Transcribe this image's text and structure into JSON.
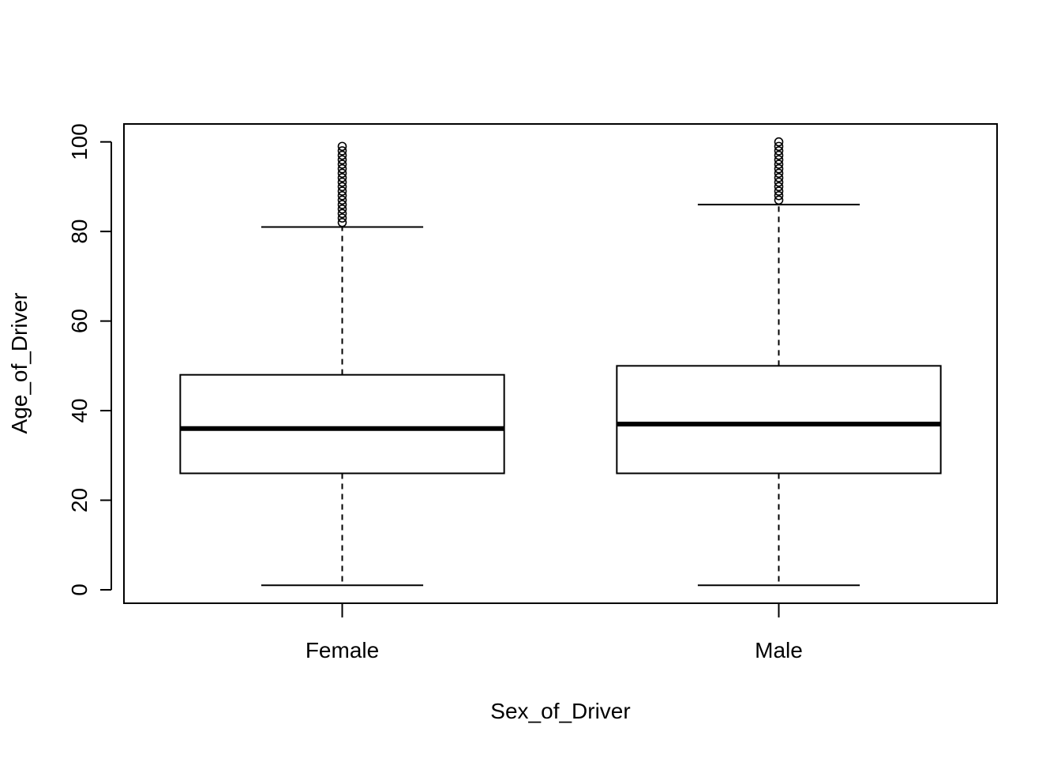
{
  "chart_data": {
    "type": "boxplot",
    "title": "",
    "xlabel": "Sex_of_Driver",
    "ylabel": "Age_of_Driver",
    "ylim": [
      -3,
      104
    ],
    "yticks": [
      0,
      20,
      40,
      60,
      80,
      100
    ],
    "yticklabels": [
      "0",
      "20",
      "40",
      "60",
      "80",
      "100"
    ],
    "grid": false,
    "legend": "none",
    "colors": {
      "box_fill": "#ffffff",
      "stroke": "#000000"
    },
    "categories": [
      "Female",
      "Male"
    ],
    "boxes": [
      {
        "category": "Female",
        "whisker_low": 1,
        "q1": 26,
        "median": 36,
        "q3": 48,
        "whisker_high": 81,
        "outliers": [
          82,
          83,
          84,
          85,
          86,
          87,
          88,
          89,
          90,
          91,
          92,
          93,
          94,
          95,
          96,
          97,
          98,
          99
        ]
      },
      {
        "category": "Male",
        "whisker_low": 1,
        "q1": 26,
        "median": 37,
        "q3": 50,
        "whisker_high": 86,
        "outliers": [
          87,
          88,
          89,
          90,
          91,
          92,
          93,
          94,
          95,
          96,
          97,
          98,
          99,
          100
        ]
      }
    ]
  }
}
